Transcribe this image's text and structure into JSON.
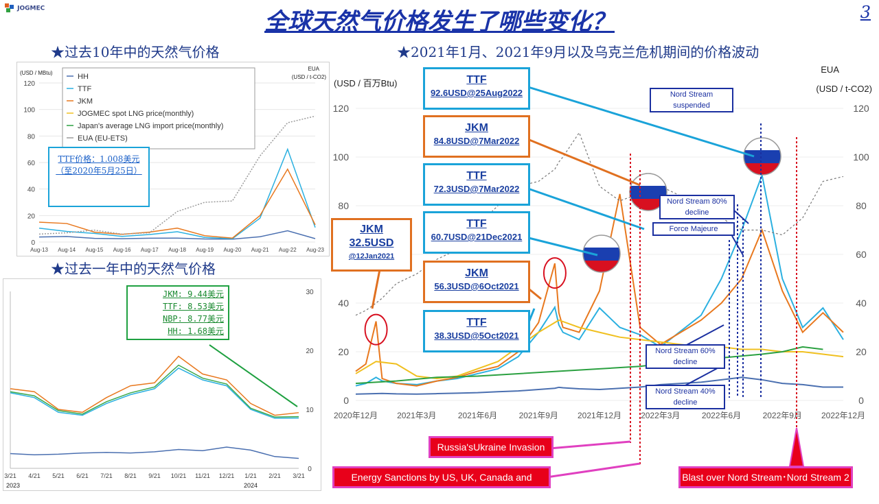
{
  "header": {
    "logo_text": "JOGMEC",
    "title": "全球天然气价格发生了哪些变化？",
    "page_number": "3"
  },
  "sections": {
    "ten_year": "★过去10年中的天然气价格",
    "one_year": "★过去一年中的天然气价格",
    "main": "★2021年1月、2021年9月以及乌克兰危机期间的价格波动"
  },
  "colors": {
    "HH": "#4a6fb0",
    "TTF": "#2bb0e0",
    "JKM": "#e8781e",
    "NBP": "#3aa84a",
    "EUA": "#9a9a9a",
    "JOGMEC": "#f0c020",
    "import": "#2aa040",
    "callout_blue": "#1aa3d9",
    "callout_orange": "#e07020",
    "event_red": "#e8001a"
  },
  "chart_data": [
    {
      "id": "ten_year",
      "type": "line",
      "ylabel_left": "(USD / MBtu)",
      "ylabel_right_1": "EUA",
      "ylabel_right_2": "(USD / t-CO2)",
      "ylim": [
        0,
        120
      ],
      "y_ticks": [
        "0",
        "20",
        "40",
        "60",
        "80",
        "100",
        "120"
      ],
      "x_ticks": [
        "Aug-13",
        "Aug-14",
        "Aug-15",
        "Aug-16",
        "Aug-17",
        "Aug-18",
        "Aug-19",
        "Aug-20",
        "Aug-21",
        "Aug-22",
        "Aug-23"
      ],
      "legend": [
        "HH",
        "TTF",
        "JKM",
        "JOGMEC spot LNG price(monthly)",
        "Japan's average LNG import price(monthly)",
        "EUA (EU-ETS)"
      ],
      "note": [
        "TTF价格：1.008美元",
        "（至2020年5月25日）"
      ],
      "x": [
        0,
        1,
        2,
        3,
        4,
        5,
        6,
        7,
        8,
        9,
        10
      ],
      "series": [
        {
          "name": "HH",
          "values": [
            3.8,
            4.2,
            2.8,
            2.5,
            2.9,
            3.0,
            2.3,
            2.2,
            4.0,
            8.5,
            2.6
          ]
        },
        {
          "name": "TTF",
          "values": [
            10.5,
            8.0,
            6.5,
            4.3,
            5.7,
            7.8,
            3.5,
            2.5,
            18.0,
            70.0,
            11.0
          ]
        },
        {
          "name": "JKM",
          "values": [
            15.0,
            14.0,
            7.5,
            5.8,
            7.5,
            10.5,
            4.8,
            3.0,
            20.0,
            55.0,
            13.0
          ]
        },
        {
          "name": "EUA (EU-ETS)",
          "values": [
            6.0,
            7.0,
            9.0,
            6.0,
            7.0,
            23.0,
            30.0,
            31.0,
            65.0,
            90.0,
            95.0
          ]
        }
      ]
    },
    {
      "id": "one_year",
      "type": "line",
      "ylim": [
        0,
        30
      ],
      "y_ticks": [
        "0",
        "10",
        "20",
        "30"
      ],
      "x_ticks": [
        "3/21",
        "4/21",
        "5/21",
        "6/21",
        "7/21",
        "8/21",
        "9/21",
        "10/21",
        "11/21",
        "12/21",
        "1/21",
        "2/21",
        "3/21"
      ],
      "year_labels": [
        "2023",
        "2024"
      ],
      "note": [
        "JKM: 9.44美元",
        "TTF: 8.53美元",
        "NBP: 8.77美元",
        "HH: 1.68美元"
      ],
      "x": [
        0,
        1,
        2,
        3,
        4,
        5,
        6,
        7,
        8,
        9,
        10,
        11,
        12
      ],
      "series": [
        {
          "name": "JKM",
          "values": [
            13.5,
            13.0,
            10.0,
            9.5,
            12.0,
            14.0,
            14.5,
            19.0,
            16.0,
            15.0,
            11.0,
            9.0,
            9.44
          ]
        },
        {
          "name": "TTF",
          "values": [
            12.8,
            12.0,
            9.5,
            9.0,
            11.0,
            12.5,
            13.5,
            17.0,
            15.0,
            14.0,
            10.0,
            8.5,
            8.53
          ]
        },
        {
          "name": "NBP",
          "values": [
            13.0,
            12.3,
            9.8,
            9.2,
            11.3,
            12.8,
            13.8,
            17.5,
            15.3,
            14.3,
            10.2,
            8.7,
            8.77
          ]
        },
        {
          "name": "HH",
          "values": [
            2.5,
            2.3,
            2.4,
            2.6,
            2.7,
            2.6,
            2.8,
            3.2,
            3.0,
            3.6,
            3.1,
            2.0,
            1.68
          ]
        }
      ]
    },
    {
      "id": "main",
      "type": "line",
      "ylabel_left": "(USD / 百万Btu)",
      "ylabel_right_1": "EUA",
      "ylabel_right_2": "(USD / t-CO2)",
      "ylim": [
        0,
        120
      ],
      "y_ticks": [
        "0",
        "20",
        "40",
        "60",
        "80",
        "100",
        "120"
      ],
      "x_ticks": [
        "2020年12月",
        "2021年3月",
        "2021年6月",
        "2021年9月",
        "2021年12月",
        "2022年3月",
        "2022年6月",
        "2022年9月",
        "2022年12月"
      ],
      "x": [
        0,
        0.5,
        1,
        1.3,
        2,
        3,
        4,
        5,
        6,
        7,
        8,
        9,
        9.8,
        10,
        10.2,
        11,
        12,
        13,
        14,
        15,
        17,
        18,
        19,
        20,
        21,
        22,
        23,
        24
      ],
      "series": [
        {
          "name": "HH",
          "values": [
            2.6,
            2.7,
            2.8,
            2.9,
            2.7,
            2.6,
            2.8,
            3.0,
            3.2,
            3.6,
            3.9,
            4.5,
            5.0,
            5.4,
            5.2,
            4.8,
            4.5,
            5.0,
            5.5,
            6.5,
            7.5,
            8.5,
            9.5,
            8.5,
            7.0,
            6.5,
            5.5,
            5.5
          ]
        },
        {
          "name": "TTF",
          "values": [
            6.0,
            7.0,
            9.5,
            8.0,
            7.0,
            6.5,
            8.0,
            9.0,
            11.0,
            13.0,
            18.0,
            28.0,
            38.3,
            31.0,
            28.0,
            25.0,
            38.0,
            30.0,
            27.0,
            22.0,
            35.0,
            50.0,
            70.0,
            92.6,
            50.0,
            30.0,
            38.0,
            25.0
          ]
        },
        {
          "name": "JKM",
          "values": [
            12.0,
            15.0,
            32.5,
            9.0,
            7.0,
            6.0,
            8.0,
            9.5,
            12.0,
            14.0,
            20.0,
            32.0,
            56.3,
            36.0,
            30.0,
            28.0,
            45.0,
            84.8,
            30.0,
            23.0,
            33.0,
            40.0,
            50.0,
            70.0,
            45.0,
            28.0,
            36.0,
            28.0
          ]
        },
        {
          "name": "EUA",
          "values": [
            35.0,
            37.0,
            40.0,
            42.0,
            48.0,
            52.0,
            58.0,
            62.0,
            72.0,
            80.0,
            88.0,
            90.0,
            95.0,
            98.0,
            100.0,
            110.0,
            88.0,
            82.0,
            85.0,
            88.0,
            80.0,
            75.0,
            70.0,
            70.0,
            68.0,
            75.0,
            90.0,
            92.0
          ]
        }
      ],
      "aux_series": [
        {
          "name": "JOGMEC",
          "x": [
            0,
            1,
            2,
            3,
            4,
            5,
            6,
            7,
            8,
            9,
            10,
            11,
            12,
            13,
            14,
            15,
            16,
            17,
            18,
            19,
            20,
            21,
            22,
            23,
            24
          ],
          "values": [
            11.0,
            16.0,
            15.0,
            10.0,
            9.0,
            10.0,
            13.0,
            16.0,
            22.0,
            28.0,
            33.0,
            30.0,
            28.0,
            26.0,
            25.0,
            24.0,
            23.0,
            22.0,
            22.0,
            21.0,
            21.0,
            20.0,
            20.0,
            19.0,
            18.0
          ]
        },
        {
          "name": "import",
          "x": [
            0,
            2,
            4,
            6,
            8,
            10,
            12,
            14,
            16,
            18,
            20,
            21,
            22,
            23
          ],
          "values": [
            7.0,
            8.0,
            9.5,
            10.0,
            11.0,
            12.0,
            13.0,
            14.0,
            16.0,
            17.5,
            19.0,
            20.0,
            22.0,
            21.0
          ]
        }
      ]
    }
  ],
  "main_callouts": [
    {
      "line1": "TTF",
      "line2": "92.6USD@25Aug2022",
      "kind": "blue"
    },
    {
      "line1": "JKM",
      "line2": "84.8USD@7Mar2022",
      "kind": "orange"
    },
    {
      "line1": "TTF",
      "line2": "72.3USD@7Mar2022",
      "kind": "blue"
    },
    {
      "line1": "TTF",
      "line2": "60.7USD@21Dec2021",
      "kind": "blue"
    },
    {
      "line1": "JKM",
      "line2": "56.3USD@6Oct2021",
      "kind": "orange"
    },
    {
      "line1": "TTF",
      "line2": "38.3USD@5Oct2021",
      "kind": "blue"
    },
    {
      "line1": "JKM",
      "line2": "32.5USD",
      "line3": "@12Jan2021",
      "kind": "orange"
    }
  ],
  "events": {
    "nord_suspended": "Nord Stream suspended",
    "nord_80": "Nord Stream 80% decline",
    "force_majeure": "Force Majeure",
    "nord_60": "Nord Stream 60% decline",
    "nord_40": "Nord Stream 40% decline",
    "invasion": "Russia'sUkraine Invasion",
    "sanctions": "Energy Sanctions by US, UK, Canada and Australia",
    "blast": "Blast over Nord Stream･Nord Stream 2"
  }
}
